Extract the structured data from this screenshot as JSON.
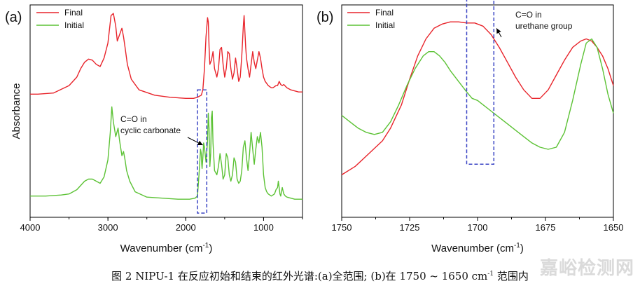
{
  "colors": {
    "final": "#e8242b",
    "initial": "#5cc235",
    "box": "#3b45c4",
    "axis": "#000000"
  },
  "caption": {
    "main": "图 2 NIPU-1 在反应初始和结束的红外光谱:(a)全范围; (b)在 1750 ~ 1650 cm",
    "sup": "-1",
    "tail": " 范围内"
  },
  "watermark": "嘉峪检测网",
  "chart_data": [
    {
      "id": "a",
      "type": "line",
      "panel_label": "(a)",
      "xlabel": "Wavenumber (cm",
      "xlabel_sup": "-1",
      "xlabel_tail": ")",
      "ylabel": "Absorbance",
      "xlim": [
        4000,
        500
      ],
      "ylim": [
        0,
        1
      ],
      "xticks": [
        4000,
        3000,
        2000,
        1000
      ],
      "legend": [
        "Final",
        "Initial"
      ],
      "legend_position": "top-left",
      "series": [
        {
          "name": "Final",
          "x": [
            4000,
            3900,
            3700,
            3500,
            3400,
            3350,
            3300,
            3250,
            3200,
            3150,
            3100,
            3050,
            3000,
            2960,
            2930,
            2900,
            2880,
            2850,
            2820,
            2800,
            2780,
            2750,
            2700,
            2600,
            2400,
            2200,
            2000,
            1900,
            1850,
            1800,
            1780,
            1760,
            1740,
            1720,
            1710,
            1700,
            1690,
            1670,
            1650,
            1630,
            1600,
            1580,
            1560,
            1540,
            1520,
            1500,
            1480,
            1460,
            1440,
            1420,
            1400,
            1380,
            1360,
            1340,
            1320,
            1300,
            1280,
            1260,
            1250,
            1240,
            1230,
            1220,
            1200,
            1180,
            1160,
            1140,
            1120,
            1100,
            1080,
            1060,
            1040,
            1020,
            1000,
            980,
            960,
            940,
            920,
            900,
            880,
            860,
            840,
            820,
            800,
            780,
            760,
            740,
            700,
            650,
            600,
            550,
            500
          ],
          "y": [
            0.58,
            0.58,
            0.585,
            0.62,
            0.66,
            0.7,
            0.73,
            0.745,
            0.74,
            0.72,
            0.71,
            0.75,
            0.82,
            0.95,
            0.96,
            0.9,
            0.83,
            0.86,
            0.89,
            0.85,
            0.8,
            0.72,
            0.65,
            0.6,
            0.575,
            0.565,
            0.56,
            0.56,
            0.565,
            0.575,
            0.6,
            0.7,
            0.85,
            0.94,
            0.92,
            0.8,
            0.72,
            0.74,
            0.78,
            0.7,
            0.66,
            0.7,
            0.79,
            0.8,
            0.72,
            0.66,
            0.7,
            0.78,
            0.77,
            0.7,
            0.65,
            0.68,
            0.75,
            0.7,
            0.64,
            0.66,
            0.76,
            0.9,
            0.95,
            0.87,
            0.8,
            0.75,
            0.7,
            0.66,
            0.72,
            0.78,
            0.73,
            0.7,
            0.74,
            0.78,
            0.75,
            0.7,
            0.66,
            0.64,
            0.63,
            0.62,
            0.615,
            0.61,
            0.61,
            0.615,
            0.62,
            0.62,
            0.64,
            0.625,
            0.62,
            0.625,
            0.61,
            0.6,
            0.595,
            0.59,
            0.59
          ]
        },
        {
          "name": "Initial",
          "x": [
            4000,
            3800,
            3600,
            3500,
            3400,
            3350,
            3300,
            3250,
            3200,
            3150,
            3100,
            3050,
            3000,
            2970,
            2950,
            2930,
            2900,
            2870,
            2850,
            2820,
            2800,
            2780,
            2760,
            2720,
            2650,
            2500,
            2300,
            2100,
            1950,
            1880,
            1850,
            1830,
            1810,
            1800,
            1795,
            1790,
            1780,
            1770,
            1760,
            1740,
            1720,
            1710,
            1700,
            1690,
            1680,
            1670,
            1660,
            1650,
            1630,
            1600,
            1580,
            1560,
            1540,
            1520,
            1500,
            1480,
            1460,
            1440,
            1420,
            1400,
            1380,
            1360,
            1340,
            1320,
            1300,
            1280,
            1260,
            1240,
            1220,
            1200,
            1180,
            1160,
            1140,
            1120,
            1100,
            1080,
            1060,
            1040,
            1020,
            1000,
            980,
            960,
            940,
            900,
            860,
            840,
            820,
            810,
            800,
            790,
            780,
            760,
            740,
            720,
            700,
            650,
            600,
            550,
            500
          ],
          "y": [
            0.1,
            0.1,
            0.105,
            0.11,
            0.13,
            0.15,
            0.17,
            0.18,
            0.18,
            0.17,
            0.16,
            0.19,
            0.27,
            0.4,
            0.52,
            0.45,
            0.38,
            0.42,
            0.36,
            0.29,
            0.31,
            0.27,
            0.22,
            0.17,
            0.12,
            0.095,
            0.09,
            0.085,
            0.085,
            0.09,
            0.1,
            0.2,
            0.32,
            0.3,
            0.25,
            0.23,
            0.28,
            0.35,
            0.33,
            0.26,
            0.36,
            0.49,
            0.42,
            0.24,
            0.3,
            0.47,
            0.5,
            0.35,
            0.22,
            0.2,
            0.24,
            0.3,
            0.25,
            0.18,
            0.2,
            0.3,
            0.28,
            0.2,
            0.17,
            0.2,
            0.28,
            0.26,
            0.18,
            0.16,
            0.17,
            0.22,
            0.33,
            0.36,
            0.28,
            0.22,
            0.3,
            0.4,
            0.32,
            0.25,
            0.32,
            0.38,
            0.35,
            0.4,
            0.33,
            0.2,
            0.14,
            0.12,
            0.11,
            0.1,
            0.11,
            0.13,
            0.14,
            0.17,
            0.14,
            0.11,
            0.1,
            0.14,
            0.11,
            0.1,
            0.095,
            0.09,
            0.085,
            0.085,
            0.085
          ]
        }
      ],
      "annotations": [
        {
          "lines": [
            "C=O in",
            "cyclic carbonate"
          ],
          "arrow_to": [
            1780,
            0.34
          ]
        }
      ],
      "highlight_box": {
        "x_range": [
          1850,
          1730
        ],
        "y_range": [
          0.02,
          0.6
        ]
      }
    },
    {
      "id": "b",
      "type": "line",
      "panel_label": "(b)",
      "xlabel": "Wavenumber (cm",
      "xlabel_sup": "-1",
      "xlabel_tail": ")",
      "xlim": [
        1750,
        1650
      ],
      "ylim": [
        0,
        1
      ],
      "xticks": [
        1750,
        1725,
        1700,
        1675,
        1650
      ],
      "legend": [
        "Final",
        "Initial"
      ],
      "legend_position": "top-left",
      "series": [
        {
          "name": "Final",
          "x": [
            1750,
            1745,
            1740,
            1735,
            1732,
            1728,
            1725,
            1722,
            1719,
            1716,
            1713,
            1710,
            1707,
            1704,
            1701,
            1698,
            1695,
            1692,
            1689,
            1686,
            1683,
            1680,
            1677,
            1674,
            1671,
            1668,
            1665,
            1662,
            1660,
            1658,
            1656,
            1654,
            1652,
            1650
          ],
          "y": [
            0.2,
            0.24,
            0.3,
            0.36,
            0.42,
            0.53,
            0.65,
            0.76,
            0.84,
            0.89,
            0.91,
            0.92,
            0.92,
            0.915,
            0.915,
            0.9,
            0.86,
            0.8,
            0.73,
            0.66,
            0.6,
            0.56,
            0.56,
            0.6,
            0.67,
            0.74,
            0.8,
            0.83,
            0.84,
            0.83,
            0.8,
            0.76,
            0.7,
            0.62
          ]
        },
        {
          "name": "Initial",
          "x": [
            1750,
            1747,
            1744,
            1741,
            1738,
            1735,
            1732,
            1729,
            1726,
            1723,
            1720,
            1718,
            1716,
            1714,
            1712,
            1710,
            1707,
            1704,
            1702,
            1700,
            1698,
            1695,
            1692,
            1689,
            1686,
            1683,
            1680,
            1677,
            1674,
            1671,
            1668,
            1665,
            1662,
            1660,
            1658,
            1656,
            1654,
            1652,
            1650
          ],
          "y": [
            0.48,
            0.45,
            0.42,
            0.4,
            0.39,
            0.4,
            0.45,
            0.53,
            0.62,
            0.7,
            0.76,
            0.78,
            0.78,
            0.76,
            0.73,
            0.69,
            0.64,
            0.59,
            0.56,
            0.55,
            0.53,
            0.5,
            0.47,
            0.44,
            0.41,
            0.38,
            0.35,
            0.33,
            0.32,
            0.33,
            0.4,
            0.55,
            0.72,
            0.82,
            0.84,
            0.8,
            0.7,
            0.58,
            0.49
          ]
        }
      ],
      "annotations": [
        {
          "lines": [
            "C=O in",
            "urethane group"
          ],
          "arrow_to": [
            1693,
            0.89
          ]
        }
      ],
      "highlight_box": {
        "x_range": [
          1704,
          1694
        ],
        "y_range": [
          0.25,
          1.05
        ]
      }
    }
  ]
}
